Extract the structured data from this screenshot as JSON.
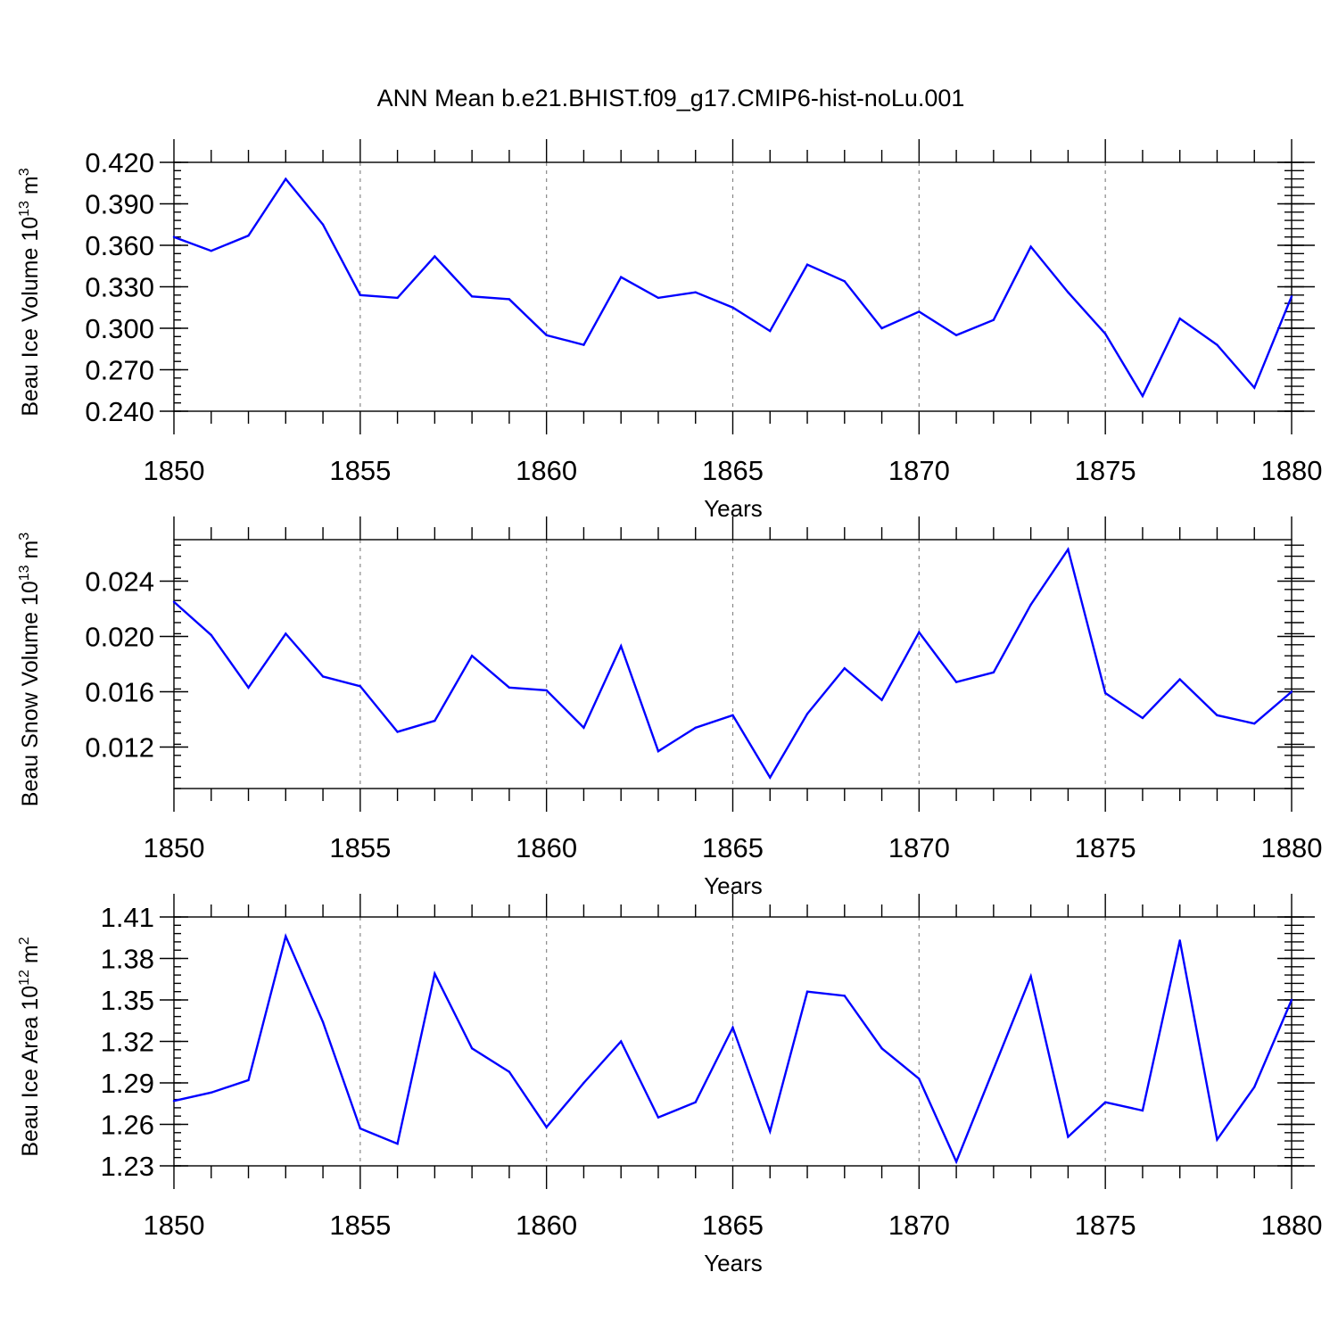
{
  "title": "ANN Mean b.e21.BHIST.f09_g17.CMIP6-hist-noLu.001",
  "colors": {
    "line": "#0000ff",
    "grid": "#888888",
    "axis": "#000000"
  },
  "chart_data": [
    {
      "type": "line",
      "name": "ice-volume",
      "ylabel_main": "Beau Ice Volume 10",
      "ylabel_exp": "13",
      "ylabel_unit": " m",
      "ylabel_unit_exp": "3",
      "xlabel": "Years",
      "xlim": [
        1850,
        1880
      ],
      "ylim": [
        0.24,
        0.42
      ],
      "xticks": [
        "1850",
        "1855",
        "1860",
        "1865",
        "1870",
        "1875",
        "1880"
      ],
      "yticks": [
        "0.240",
        "0.270",
        "0.300",
        "0.330",
        "0.360",
        "0.390",
        "0.420"
      ],
      "ytick_values": [
        0.24,
        0.27,
        0.3,
        0.33,
        0.36,
        0.39,
        0.42
      ],
      "grid": "vertical dashed at labeled years",
      "series": [
        {
          "name": "Beau Ice Volume",
          "x": [
            1850,
            1851,
            1852,
            1853,
            1854,
            1855,
            1856,
            1857,
            1858,
            1859,
            1860,
            1861,
            1862,
            1863,
            1864,
            1865,
            1866,
            1867,
            1868,
            1869,
            1870,
            1871,
            1872,
            1873,
            1874,
            1875,
            1876,
            1877,
            1878,
            1879,
            1880
          ],
          "values": [
            0.366,
            0.356,
            0.367,
            0.408,
            0.375,
            0.324,
            0.322,
            0.352,
            0.323,
            0.321,
            0.295,
            0.288,
            0.337,
            0.322,
            0.326,
            0.315,
            0.298,
            0.346,
            0.334,
            0.3,
            0.312,
            0.295,
            0.306,
            0.359,
            0.326,
            0.296,
            0.251,
            0.307,
            0.288,
            0.257,
            0.323
          ]
        }
      ]
    },
    {
      "type": "line",
      "name": "snow-volume",
      "ylabel_main": "Beau Snow Volume 10",
      "ylabel_exp": "13",
      "ylabel_unit": " m",
      "ylabel_unit_exp": "3",
      "xlabel": "Years",
      "xlim": [
        1850,
        1880
      ],
      "ylim": [
        0.009,
        0.027
      ],
      "xticks": [
        "1850",
        "1855",
        "1860",
        "1865",
        "1870",
        "1875",
        "1880"
      ],
      "yticks": [
        "0.012",
        "0.016",
        "0.020",
        "0.024"
      ],
      "ytick_values": [
        0.012,
        0.016,
        0.02,
        0.024
      ],
      "grid": "vertical dashed at labeled years",
      "series": [
        {
          "name": "Beau Snow Volume",
          "x": [
            1850,
            1851,
            1852,
            1853,
            1854,
            1855,
            1856,
            1857,
            1858,
            1859,
            1860,
            1861,
            1862,
            1863,
            1864,
            1865,
            1866,
            1867,
            1868,
            1869,
            1870,
            1871,
            1872,
            1873,
            1874,
            1875,
            1876,
            1877,
            1878,
            1879,
            1880
          ],
          "values": [
            0.0225,
            0.0201,
            0.0163,
            0.0202,
            0.0171,
            0.0164,
            0.0131,
            0.0139,
            0.0186,
            0.0163,
            0.0161,
            0.0134,
            0.0193,
            0.0117,
            0.0134,
            0.0143,
            0.0098,
            0.0144,
            0.0177,
            0.0154,
            0.0203,
            0.0167,
            0.0174,
            0.0223,
            0.0263,
            0.0159,
            0.0141,
            0.0169,
            0.0143,
            0.0137,
            0.016
          ]
        }
      ]
    },
    {
      "type": "line",
      "name": "ice-area",
      "ylabel_main": "Beau Ice Area 10",
      "ylabel_exp": "12",
      "ylabel_unit": " m",
      "ylabel_unit_exp": "2",
      "xlabel": "Years",
      "xlim": [
        1850,
        1880
      ],
      "ylim": [
        1.23,
        1.41
      ],
      "xticks": [
        "1850",
        "1855",
        "1860",
        "1865",
        "1870",
        "1875",
        "1880"
      ],
      "yticks": [
        "1.23",
        "1.26",
        "1.29",
        "1.32",
        "1.35",
        "1.38",
        "1.41"
      ],
      "ytick_values": [
        1.23,
        1.26,
        1.29,
        1.32,
        1.35,
        1.38,
        1.41
      ],
      "grid": "vertical dashed at labeled years",
      "series": [
        {
          "name": "Beau Ice Area",
          "x": [
            1850,
            1851,
            1852,
            1853,
            1854,
            1855,
            1856,
            1857,
            1858,
            1859,
            1860,
            1861,
            1862,
            1863,
            1864,
            1865,
            1866,
            1867,
            1868,
            1869,
            1870,
            1871,
            1872,
            1873,
            1874,
            1875,
            1876,
            1877,
            1878,
            1879,
            1880
          ],
          "values": [
            1.277,
            1.283,
            1.292,
            1.396,
            1.334,
            1.257,
            1.246,
            1.369,
            1.315,
            1.298,
            1.258,
            1.29,
            1.32,
            1.265,
            1.276,
            1.33,
            1.255,
            1.356,
            1.353,
            1.315,
            1.293,
            1.233,
            1.3,
            1.367,
            1.251,
            1.276,
            1.27,
            1.393,
            1.249,
            1.287,
            1.35
          ]
        }
      ]
    }
  ]
}
